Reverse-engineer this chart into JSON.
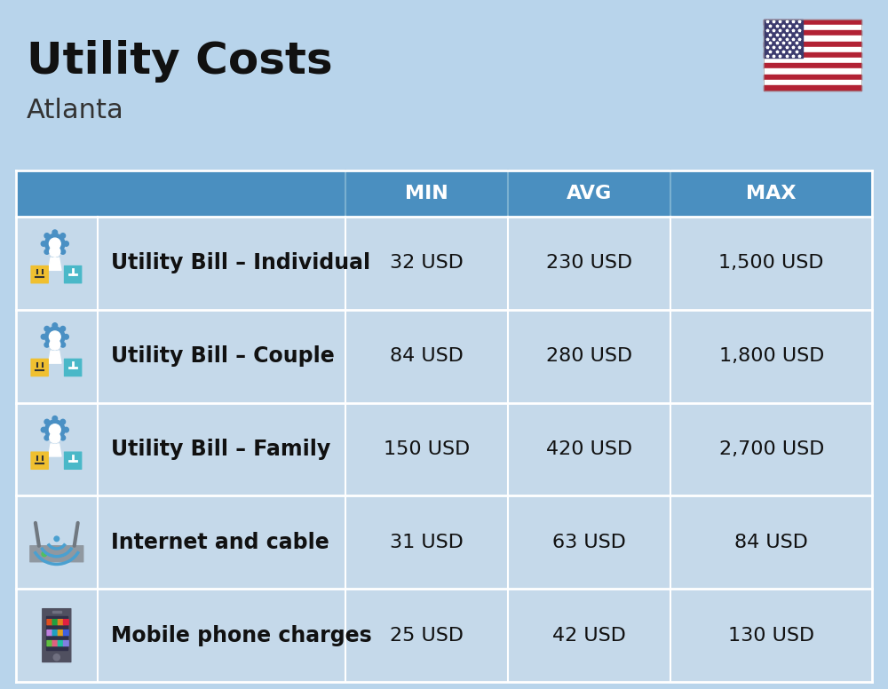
{
  "title": "Utility Costs",
  "subtitle": "Atlanta",
  "background_color": "#b8d4eb",
  "header_bg_color": "#4a8fc0",
  "header_text_color": "#ffffff",
  "row_bg_color": "#c5d9ea",
  "divider_color": "#ffffff",
  "col_header_labels": [
    "MIN",
    "AVG",
    "MAX"
  ],
  "rows": [
    {
      "label": "Utility Bill – Individual",
      "min": "32 USD",
      "avg": "230 USD",
      "max": "1,500 USD"
    },
    {
      "label": "Utility Bill – Couple",
      "min": "84 USD",
      "avg": "280 USD",
      "max": "1,800 USD"
    },
    {
      "label": "Utility Bill – Family",
      "min": "150 USD",
      "avg": "420 USD",
      "max": "2,700 USD"
    },
    {
      "label": "Internet and cable",
      "min": "31 USD",
      "avg": "63 USD",
      "max": "84 USD"
    },
    {
      "label": "Mobile phone charges",
      "min": "25 USD",
      "avg": "42 USD",
      "max": "130 USD"
    }
  ],
  "title_fontsize": 36,
  "subtitle_fontsize": 22,
  "header_fontsize": 16,
  "data_fontsize": 16,
  "label_fontsize": 17
}
